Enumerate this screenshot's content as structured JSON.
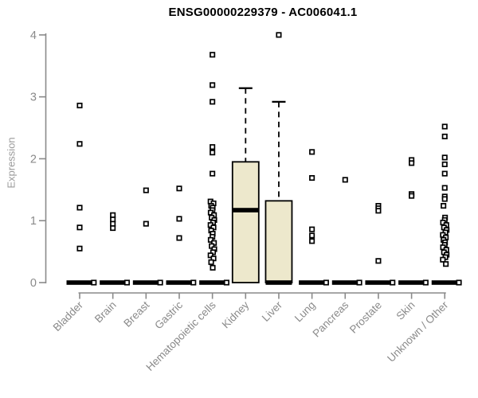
{
  "chart_data": {
    "type": "boxplot",
    "title": "ENSG00000229379 - AC006041.1",
    "ylabel": "Expression",
    "xlabel": "",
    "ylim": [
      0,
      4
    ],
    "yticks": [
      0,
      1,
      2,
      3,
      4
    ],
    "grid": false,
    "legend": "none",
    "colors": {
      "box_fill": "#ede8cc",
      "box_stroke": "#000000",
      "axis": "#8a8a8a",
      "tick_label": "#8a8a8a",
      "title_color": "#000000",
      "outlier_stroke": "#000000",
      "outlier_fill": "#ffffff"
    },
    "categories": [
      {
        "label": "Bladder",
        "q1": 0,
        "median": 0,
        "q3": 0,
        "whisker_low": 0,
        "whisker_high": 0,
        "outliers": [
          2.86,
          2.24,
          1.21,
          0.89,
          0.55
        ]
      },
      {
        "label": "Brain",
        "q1": 0,
        "median": 0,
        "q3": 0,
        "whisker_low": 0,
        "whisker_high": 0,
        "outliers": [
          1.09,
          1.02,
          0.95,
          0.88
        ]
      },
      {
        "label": "Breast",
        "q1": 0,
        "median": 0,
        "q3": 0,
        "whisker_low": 0,
        "whisker_high": 0,
        "outliers": [
          1.49,
          0.95
        ]
      },
      {
        "label": "Gastric",
        "q1": 0,
        "median": 0,
        "q3": 0,
        "whisker_low": 0,
        "whisker_high": 0,
        "outliers": [
          1.52,
          1.03,
          0.72
        ]
      },
      {
        "label": "Hematopoietic cells",
        "q1": 0,
        "median": 0,
        "q3": 0,
        "whisker_low": 0,
        "whisker_high": 0,
        "outliers": [
          3.68,
          3.19,
          2.92,
          2.19,
          2.1,
          1.76,
          1.31,
          1.28,
          1.24,
          1.21,
          1.17,
          1.13,
          1.09,
          1.05,
          1.01,
          0.97,
          0.93,
          0.89,
          0.84,
          0.79,
          0.74,
          0.69,
          0.64,
          0.59,
          0.54,
          0.49,
          0.44,
          0.39,
          0.33,
          0.24
        ]
      },
      {
        "label": "Kidney",
        "q1": 0,
        "median": 1.17,
        "q3": 1.95,
        "whisker_low": 0,
        "whisker_high": 3.14,
        "outliers": []
      },
      {
        "label": "Liver",
        "q1": 0,
        "median": 0,
        "q3": 1.32,
        "whisker_low": 0,
        "whisker_high": 2.92,
        "outliers": [
          4.0
        ]
      },
      {
        "label": "Lung",
        "q1": 0,
        "median": 0,
        "q3": 0,
        "whisker_low": 0,
        "whisker_high": 0,
        "outliers": [
          2.11,
          1.69,
          0.86,
          0.76,
          0.67
        ]
      },
      {
        "label": "Pancreas",
        "q1": 0,
        "median": 0,
        "q3": 0,
        "whisker_low": 0,
        "whisker_high": 0,
        "outliers": [
          1.66
        ]
      },
      {
        "label": "Prostate",
        "q1": 0,
        "median": 0,
        "q3": 0,
        "whisker_low": 0,
        "whisker_high": 0,
        "outliers": [
          1.24,
          1.2,
          1.16,
          0.35
        ]
      },
      {
        "label": "Skin",
        "q1": 0,
        "median": 0,
        "q3": 0,
        "whisker_low": 0,
        "whisker_high": 0,
        "outliers": [
          1.98,
          1.93,
          1.43,
          1.4
        ]
      },
      {
        "label": "Unknown / Other",
        "q1": 0,
        "median": 0,
        "q3": 0,
        "whisker_low": 0,
        "whisker_high": 0,
        "outliers": [
          2.52,
          2.36,
          2.02,
          1.91,
          1.76,
          1.53,
          1.39,
          1.35,
          1.24,
          1.05,
          1.01,
          0.97,
          0.93,
          0.89,
          0.85,
          0.81,
          0.77,
          0.73,
          0.69,
          0.65,
          0.61,
          0.57,
          0.53,
          0.49,
          0.45,
          0.41,
          0.37,
          0.3
        ]
      }
    ]
  }
}
